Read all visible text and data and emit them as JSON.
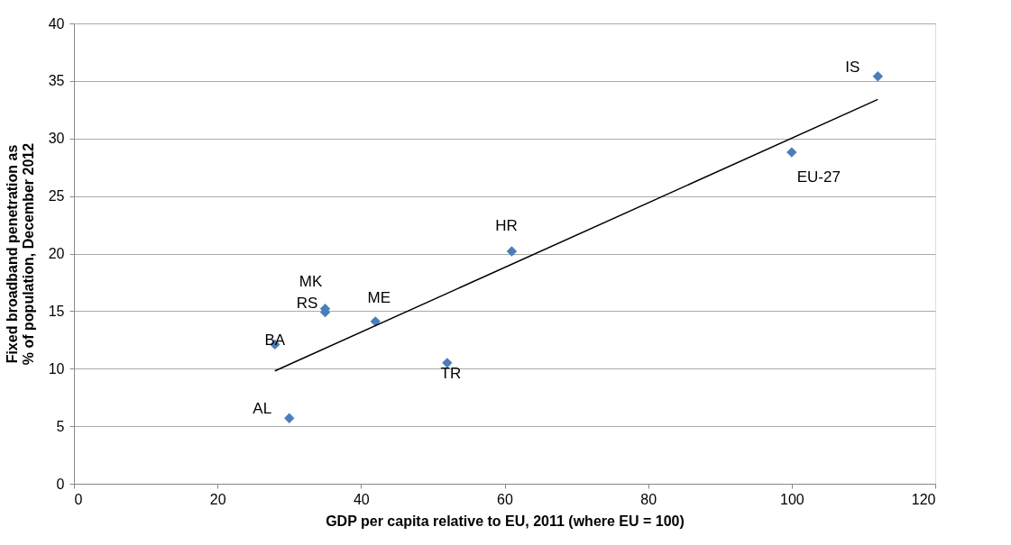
{
  "chart_data": {
    "type": "scatter",
    "xlabel": "GDP per capita relative to EU, 2011 (where EU = 100)",
    "ylabel": "Fixed broadband penetration as % of population, December 2012",
    "xlim": [
      0,
      120
    ],
    "xticks": [
      0,
      20,
      40,
      60,
      80,
      100,
      120
    ],
    "ylim": [
      0,
      40
    ],
    "yticks": [
      0,
      5,
      10,
      15,
      20,
      25,
      30,
      35,
      40
    ],
    "grid": "y",
    "marker": "diamond",
    "series": [
      {
        "type": "scatter",
        "color": "#4a7ebb",
        "x": [
          112,
          100,
          61,
          35,
          35,
          42,
          28,
          52,
          30
        ],
        "values": [
          35.4,
          28.8,
          20.2,
          15.2,
          14.9,
          14.1,
          12.1,
          10.5,
          5.7
        ]
      },
      {
        "type": "line",
        "color": "#000000",
        "line_style": "solid",
        "marker": "none",
        "x": [
          28,
          112
        ],
        "values": [
          9.8,
          33.4
        ]
      }
    ],
    "annotations": [
      {
        "text": "IS",
        "x": 112,
        "y": 35.4
      },
      {
        "text": "EU-27",
        "x": 100,
        "y": 28.8
      },
      {
        "text": "HR",
        "x": 61,
        "y": 20.2
      },
      {
        "text": "MK",
        "x": 35,
        "y": 15.2
      },
      {
        "text": "RS",
        "x": 35,
        "y": 14.9
      },
      {
        "text": "ME",
        "x": 42,
        "y": 14.1
      },
      {
        "text": "BA",
        "x": 28,
        "y": 12.1
      },
      {
        "text": "TR",
        "x": 52,
        "y": 10.5
      },
      {
        "text": "AL",
        "x": 30,
        "y": 5.7
      }
    ]
  }
}
